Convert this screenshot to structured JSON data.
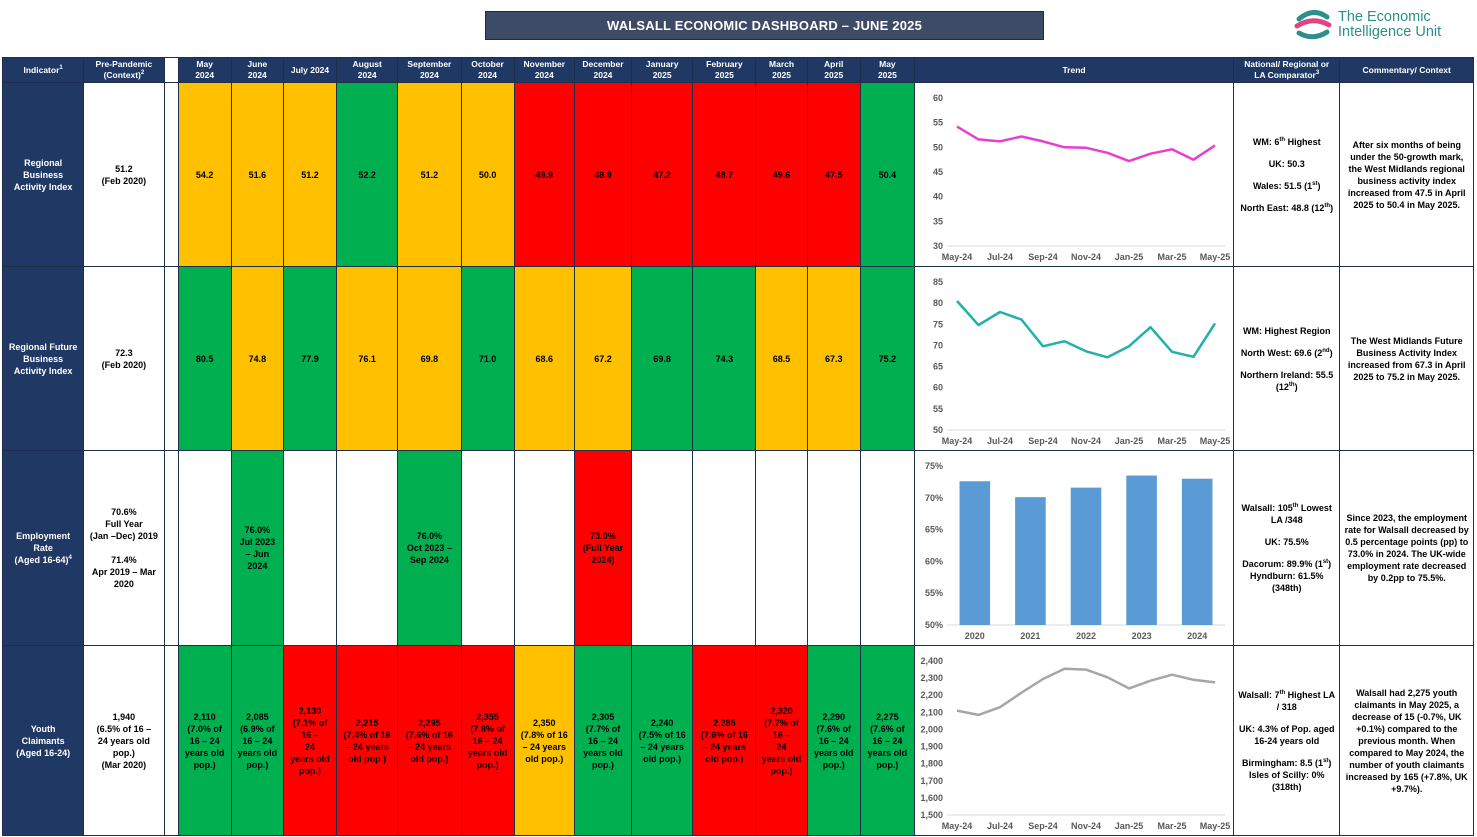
{
  "title": "WALSALL ECONOMIC DASHBOARD – JUNE 2025",
  "logo": {
    "line1": "The Economic",
    "line2": "Intelligence Unit"
  },
  "header": {
    "indicator": "Indicator",
    "indicator_sup": "1",
    "prepandemic_l1": "Pre-Pandemic",
    "prepandemic_l2": "(Context)",
    "prepandemic_sup": "2",
    "months": [
      [
        "May",
        "2024"
      ],
      [
        "June",
        "2024"
      ],
      [
        "July 2024",
        ""
      ],
      [
        "August",
        "2024"
      ],
      [
        "September",
        "2024"
      ],
      [
        "October",
        "2024"
      ],
      [
        "November",
        "2024"
      ],
      [
        "December",
        "2024"
      ],
      [
        "January",
        "2025"
      ],
      [
        "February",
        "2025"
      ],
      [
        "March",
        "2025"
      ],
      [
        "April",
        "2025"
      ],
      [
        "May",
        "2025"
      ]
    ],
    "trend": "Trend",
    "comparator_l1": "National/ Regional or",
    "comparator_l2": "LA Comparator",
    "comparator_sup": "3",
    "commentary": "Commentary/ Context"
  },
  "rows": [
    {
      "indicator": [
        "Regional",
        "Business",
        "Activity Index"
      ],
      "prepandemic": [
        "51.2",
        "(Feb 2020)"
      ],
      "cells": [
        {
          "c": "a",
          "t": [
            "54.2"
          ]
        },
        {
          "c": "a",
          "t": [
            "51.6"
          ]
        },
        {
          "c": "a",
          "t": [
            "51.2"
          ]
        },
        {
          "c": "g",
          "t": [
            "52.2"
          ]
        },
        {
          "c": "a",
          "t": [
            "51.2"
          ]
        },
        {
          "c": "a",
          "t": [
            "50.0"
          ]
        },
        {
          "c": "r",
          "t": [
            "49.9"
          ]
        },
        {
          "c": "r",
          "t": [
            "48.9"
          ]
        },
        {
          "c": "r",
          "t": [
            "47.2"
          ]
        },
        {
          "c": "r",
          "t": [
            "48.7"
          ]
        },
        {
          "c": "r",
          "t": [
            "49.6"
          ]
        },
        {
          "c": "r",
          "t": [
            "47.5"
          ]
        },
        {
          "c": "g",
          "t": [
            "50.4"
          ]
        }
      ],
      "comparator": [
        {
          "pre": "WM: 6",
          "sup": "th",
          "post": " Highest"
        },
        {
          "pre": "UK: 50.3",
          "sup": "",
          "post": ""
        },
        {
          "pre": "Wales: 51.5 (1",
          "sup": "st",
          "post": ")"
        },
        {
          "pre": "North East: 48.8 (12",
          "sup": "th",
          "post": ")"
        }
      ],
      "commentary": "After six months of being under the 50-growth mark, the West Midlands regional business activity index increased from 47.5 in April 2025 to 50.4 in May 2025."
    },
    {
      "indicator": [
        "Regional Future",
        "Business",
        "Activity Index"
      ],
      "prepandemic": [
        "72.3",
        "(Feb 2020)"
      ],
      "cells": [
        {
          "c": "g",
          "t": [
            "80.5"
          ]
        },
        {
          "c": "a",
          "t": [
            "74.8"
          ]
        },
        {
          "c": "g",
          "t": [
            "77.9"
          ]
        },
        {
          "c": "a",
          "t": [
            "76.1"
          ]
        },
        {
          "c": "a",
          "t": [
            "69.8"
          ]
        },
        {
          "c": "g",
          "t": [
            "71.0"
          ]
        },
        {
          "c": "a",
          "t": [
            "68.6"
          ]
        },
        {
          "c": "a",
          "t": [
            "67.2"
          ]
        },
        {
          "c": "g",
          "t": [
            "69.8"
          ]
        },
        {
          "c": "g",
          "t": [
            "74.3"
          ]
        },
        {
          "c": "a",
          "t": [
            "68.5"
          ]
        },
        {
          "c": "a",
          "t": [
            "67.3"
          ]
        },
        {
          "c": "g",
          "t": [
            "75.2"
          ]
        }
      ],
      "comparator": [
        {
          "pre": "WM: Highest Region",
          "sup": "",
          "post": ""
        },
        {
          "pre": "North West: 69.6 (2",
          "sup": "nd",
          "post": ")"
        },
        {
          "pre": "Northern Ireland: 55.5 (12",
          "sup": "th",
          "post": ")"
        }
      ],
      "commentary": "The West Midlands Future Business Activity Index increased from 67.3 in April 2025 to 75.2 in May 2025."
    },
    {
      "indicator": [
        "Employment",
        "Rate",
        "(Aged 16-64)"
      ],
      "indicator_sup": "4",
      "prepandemic": [
        "70.6%",
        "Full Year",
        "(Jan –Dec) 2019",
        "",
        "71.4%",
        "Apr 2019 – Mar",
        "2020"
      ],
      "cells": [
        {
          "c": "w",
          "t": [
            ""
          ]
        },
        {
          "c": "g",
          "t": [
            "76.0%",
            "Jul 2023",
            "– Jun",
            "2024"
          ]
        },
        {
          "c": "w",
          "t": [
            ""
          ]
        },
        {
          "c": "w",
          "t": [
            ""
          ]
        },
        {
          "c": "g",
          "t": [
            "76.0%",
            "Oct 2023 –",
            "Sep 2024"
          ]
        },
        {
          "c": "w",
          "t": [
            ""
          ]
        },
        {
          "c": "w",
          "t": [
            ""
          ]
        },
        {
          "c": "r",
          "t": [
            "73.0%",
            "(Full Year",
            "2024)"
          ]
        },
        {
          "c": "w",
          "t": [
            ""
          ]
        },
        {
          "c": "w",
          "t": [
            ""
          ]
        },
        {
          "c": "w",
          "t": [
            ""
          ]
        },
        {
          "c": "w",
          "t": [
            ""
          ]
        },
        {
          "c": "w",
          "t": [
            ""
          ]
        }
      ],
      "comparator": [
        {
          "pre": "Walsall: 105",
          "sup": "th",
          "post": " Lowest LA /348"
        },
        {
          "pre": "UK: 75.5%",
          "sup": "",
          "post": ""
        },
        {
          "pre": "Dacorum: 89.9% (1",
          "sup": "st",
          "post": ") Hyndburn: 61.5% (348th)"
        }
      ],
      "commentary": "Since 2023, the employment rate for Walsall decreased by 0.5 percentage points (pp) to 73.0% in 2024. The UK-wide employment rate decreased by 0.2pp to 75.5%."
    },
    {
      "indicator": [
        "Youth",
        "Claimants",
        "(Aged 16-24)"
      ],
      "prepandemic": [
        "1,940",
        "(6.5% of 16 –",
        "24 years old",
        "pop.)",
        "(Mar 2020)"
      ],
      "cells": [
        {
          "c": "g",
          "t": [
            "2,110",
            "(7.0% of",
            "16 – 24",
            "years old",
            "pop.)"
          ]
        },
        {
          "c": "g",
          "t": [
            "2,085",
            "(6.9% of",
            "16 – 24",
            "years old",
            "pop.)"
          ]
        },
        {
          "c": "r",
          "t": [
            "2,130",
            "(7.1% of",
            "16 –",
            "24",
            "years old",
            "pop.)"
          ]
        },
        {
          "c": "r",
          "t": [
            "2,215",
            "(7.4% of 16",
            "– 24 years",
            "old pop.)"
          ]
        },
        {
          "c": "r",
          "t": [
            "2,295",
            "(7.6% of 16",
            "– 24 years",
            "old pop.)"
          ]
        },
        {
          "c": "r",
          "t": [
            "2,355",
            "(7.8% of",
            "16 – 24",
            "years old",
            "pop.)"
          ]
        },
        {
          "c": "a",
          "t": [
            "2,350",
            "(7.8% of 16",
            "– 24 years",
            "old pop.)"
          ]
        },
        {
          "c": "g",
          "t": [
            "2,305",
            "(7.7% of",
            "16 – 24",
            "years old",
            "pop.)"
          ]
        },
        {
          "c": "g",
          "t": [
            "2,240",
            "(7.5% of 16",
            "– 24 years",
            "old pop.)"
          ]
        },
        {
          "c": "r",
          "t": [
            "2,285",
            "(7.6% of 16",
            "– 24 years",
            "old pop.)"
          ]
        },
        {
          "c": "r",
          "t": [
            "2,320",
            "(7.7% of",
            "16 –",
            "24",
            "years old",
            "pop.)"
          ]
        },
        {
          "c": "g",
          "t": [
            "2,290",
            "(7.6% of",
            "16 – 24",
            "years old",
            "pop.)"
          ]
        },
        {
          "c": "g",
          "t": [
            "2,275",
            "(7.6% of",
            "16 – 24",
            "years old",
            "pop.)"
          ]
        }
      ],
      "comparator": [
        {
          "pre": "Walsall: 7",
          "sup": "th",
          "post": " Highest LA / 318"
        },
        {
          "pre": "UK: 4.3% of Pop. aged 16-24 years old",
          "sup": "",
          "post": ""
        },
        {
          "pre": "Birmingham: 8.5 (1",
          "sup": "st",
          "post": ") Isles of Scilly: 0% (318th)"
        }
      ],
      "commentary": "Walsall had 2,275 youth claimants in May 2025, a decrease of 15 (-0.7%, UK +0.1%) compared to the previous month. When compared to May 2024, the number of youth claimants increased by 165 (+7.8%, UK +9.7%)."
    }
  ],
  "chart_data": [
    {
      "type": "line",
      "x": [
        "May-24",
        "Jun-24",
        "Jul-24",
        "Aug-24",
        "Sep-24",
        "Oct-24",
        "Nov-24",
        "Dec-24",
        "Jan-25",
        "Feb-25",
        "Mar-25",
        "Apr-25",
        "May-25"
      ],
      "x_tick_labels": [
        "May-24",
        "Jul-24",
        "Sep-24",
        "Nov-24",
        "Jan-25",
        "Mar-25",
        "May-25"
      ],
      "series": [
        {
          "values": [
            54.2,
            51.6,
            51.2,
            52.2,
            51.2,
            50.0,
            49.9,
            48.9,
            47.2,
            48.7,
            49.6,
            47.5,
            50.4
          ],
          "color": "#e83fd0"
        }
      ],
      "ylim": [
        30,
        60
      ],
      "yticks": [
        30,
        35,
        40,
        45,
        50,
        55,
        60
      ],
      "ytick_labels": [
        "30",
        "35",
        "40",
        "45",
        "50",
        "55",
        "60"
      ],
      "grid": false
    },
    {
      "type": "line",
      "x": [
        "May-24",
        "Jun-24",
        "Jul-24",
        "Aug-24",
        "Sep-24",
        "Oct-24",
        "Nov-24",
        "Dec-24",
        "Jan-25",
        "Feb-25",
        "Mar-25",
        "Apr-25",
        "May-25"
      ],
      "x_tick_labels": [
        "May-24",
        "Jul-24",
        "Sep-24",
        "Nov-24",
        "Jan-25",
        "Mar-25",
        "May-25"
      ],
      "series": [
        {
          "values": [
            80.5,
            74.8,
            77.9,
            76.1,
            69.8,
            71.0,
            68.6,
            67.2,
            69.8,
            74.3,
            68.5,
            67.3,
            75.2
          ],
          "color": "#20b2aa"
        }
      ],
      "ylim": [
        50,
        85
      ],
      "yticks": [
        50,
        55,
        60,
        65,
        70,
        75,
        80,
        85
      ],
      "ytick_labels": [
        "50",
        "55",
        "60",
        "65",
        "70",
        "75",
        "80",
        "85"
      ],
      "grid": false
    },
    {
      "type": "bar",
      "categories": [
        "2020",
        "2021",
        "2022",
        "2023",
        "2024"
      ],
      "values": [
        72.6,
        70.1,
        71.6,
        73.5,
        73.0
      ],
      "color": "#5b9bd5",
      "ylim": [
        50,
        75
      ],
      "yticks": [
        50,
        55,
        60,
        65,
        70,
        75
      ],
      "ytick_labels": [
        "50%",
        "55%",
        "60%",
        "65%",
        "70%",
        "75%"
      ],
      "grid": false
    },
    {
      "type": "line",
      "x": [
        "May-24",
        "Jun-24",
        "Jul-24",
        "Aug-24",
        "Sep-24",
        "Oct-24",
        "Nov-24",
        "Dec-24",
        "Jan-25",
        "Feb-25",
        "Mar-25",
        "Apr-25",
        "May-25"
      ],
      "x_tick_labels": [
        "May-24",
        "Jul-24",
        "Sep-24",
        "Nov-24",
        "Jan-25",
        "Mar-25",
        "May-25"
      ],
      "series": [
        {
          "values": [
            2110,
            2085,
            2130,
            2215,
            2295,
            2355,
            2350,
            2305,
            2240,
            2285,
            2320,
            2290,
            2275
          ],
          "color": "#a6a6a6"
        }
      ],
      "ylim": [
        1500,
        2400
      ],
      "yticks": [
        1500,
        1600,
        1700,
        1800,
        1900,
        2000,
        2100,
        2200,
        2300,
        2400
      ],
      "ytick_labels": [
        "1,500",
        "1,600",
        "1,700",
        "1,800",
        "1,900",
        "2,000",
        "2,100",
        "2,200",
        "2,300",
        "2,400"
      ],
      "grid": false
    }
  ]
}
